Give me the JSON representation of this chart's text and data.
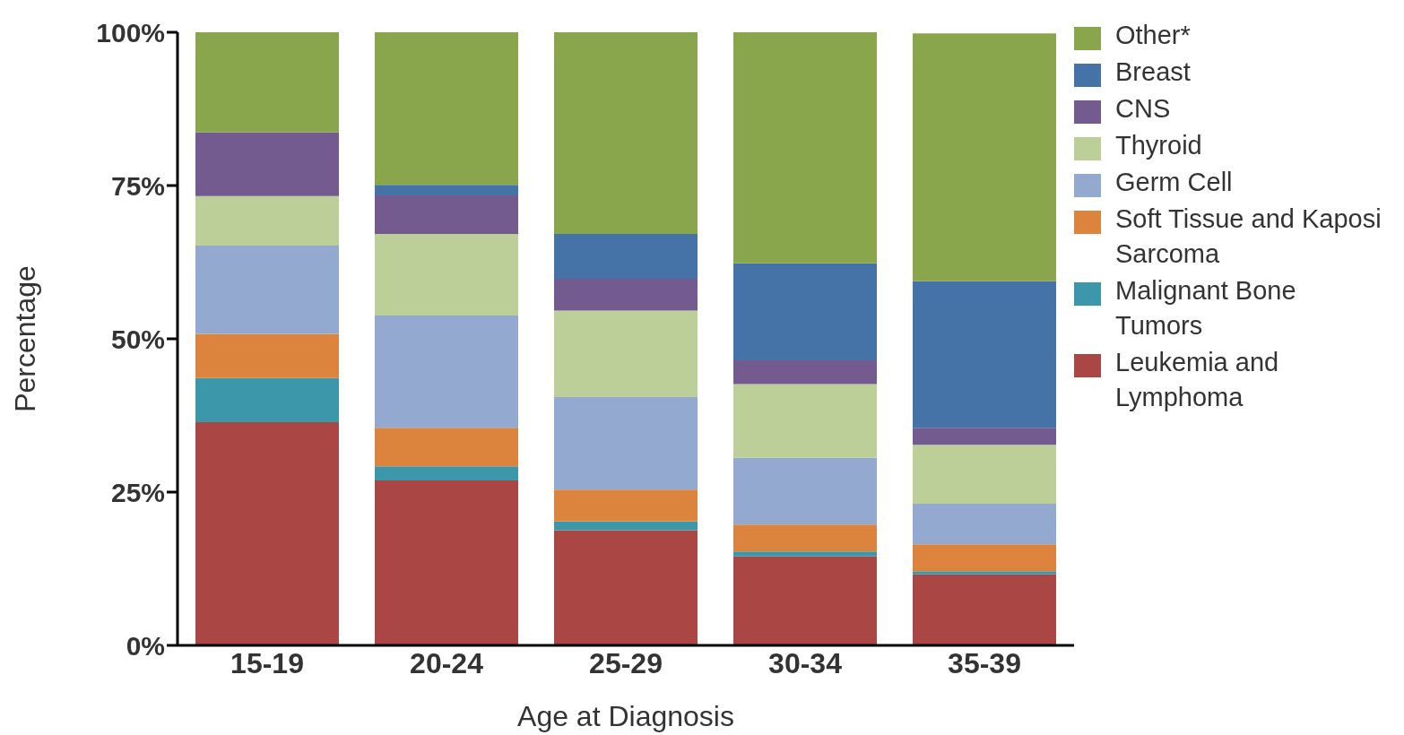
{
  "chart_data": {
    "type": "bar",
    "stacked": true,
    "xlabel": "Age at Diagnosis",
    "ylabel": "Percentage",
    "categories": [
      "15-19",
      "20-24",
      "25-29",
      "30-34",
      "35-39"
    ],
    "series": [
      {
        "name": "Leukemia and Lymphoma",
        "color": "#aa4643",
        "values": [
          36.4,
          26.9,
          18.8,
          14.5,
          11.6
        ]
      },
      {
        "name": "Malignant Bone Tumors",
        "color": "#3d97ab",
        "values": [
          7.2,
          2.3,
          1.4,
          0.8,
          0.5
        ]
      },
      {
        "name": "Soft Tissue and Kaposi Sarcoma",
        "color": "#dc843d",
        "values": [
          7.2,
          6.3,
          5.2,
          4.4,
          4.4
        ]
      },
      {
        "name": "Germ Cell",
        "color": "#94a9d0",
        "values": [
          14.4,
          18.3,
          15.1,
          10.9,
          6.6
        ]
      },
      {
        "name": "Thyroid",
        "color": "#bccf98",
        "values": [
          8.1,
          13.3,
          14.1,
          12.0,
          9.6
        ]
      },
      {
        "name": "CNS",
        "color": "#735a8f",
        "values": [
          10.4,
          6.3,
          5.2,
          3.9,
          2.8
        ]
      },
      {
        "name": "Breast",
        "color": "#4573a7",
        "values": [
          0,
          1.7,
          7.3,
          15.8,
          23.9
        ]
      },
      {
        "name": "Other*",
        "color": "#8aa64c",
        "values": [
          16.3,
          24.9,
          32.9,
          37.7,
          40.4
        ]
      }
    ],
    "ylim": [
      0,
      100
    ],
    "yticks": [
      {
        "value": 0,
        "label": "0%"
      },
      {
        "value": 25,
        "label": "25%"
      },
      {
        "value": 50,
        "label": "50%"
      },
      {
        "value": 75,
        "label": "75%"
      },
      {
        "value": 100,
        "label": "100%"
      }
    ],
    "grid": false,
    "legend": "right"
  }
}
